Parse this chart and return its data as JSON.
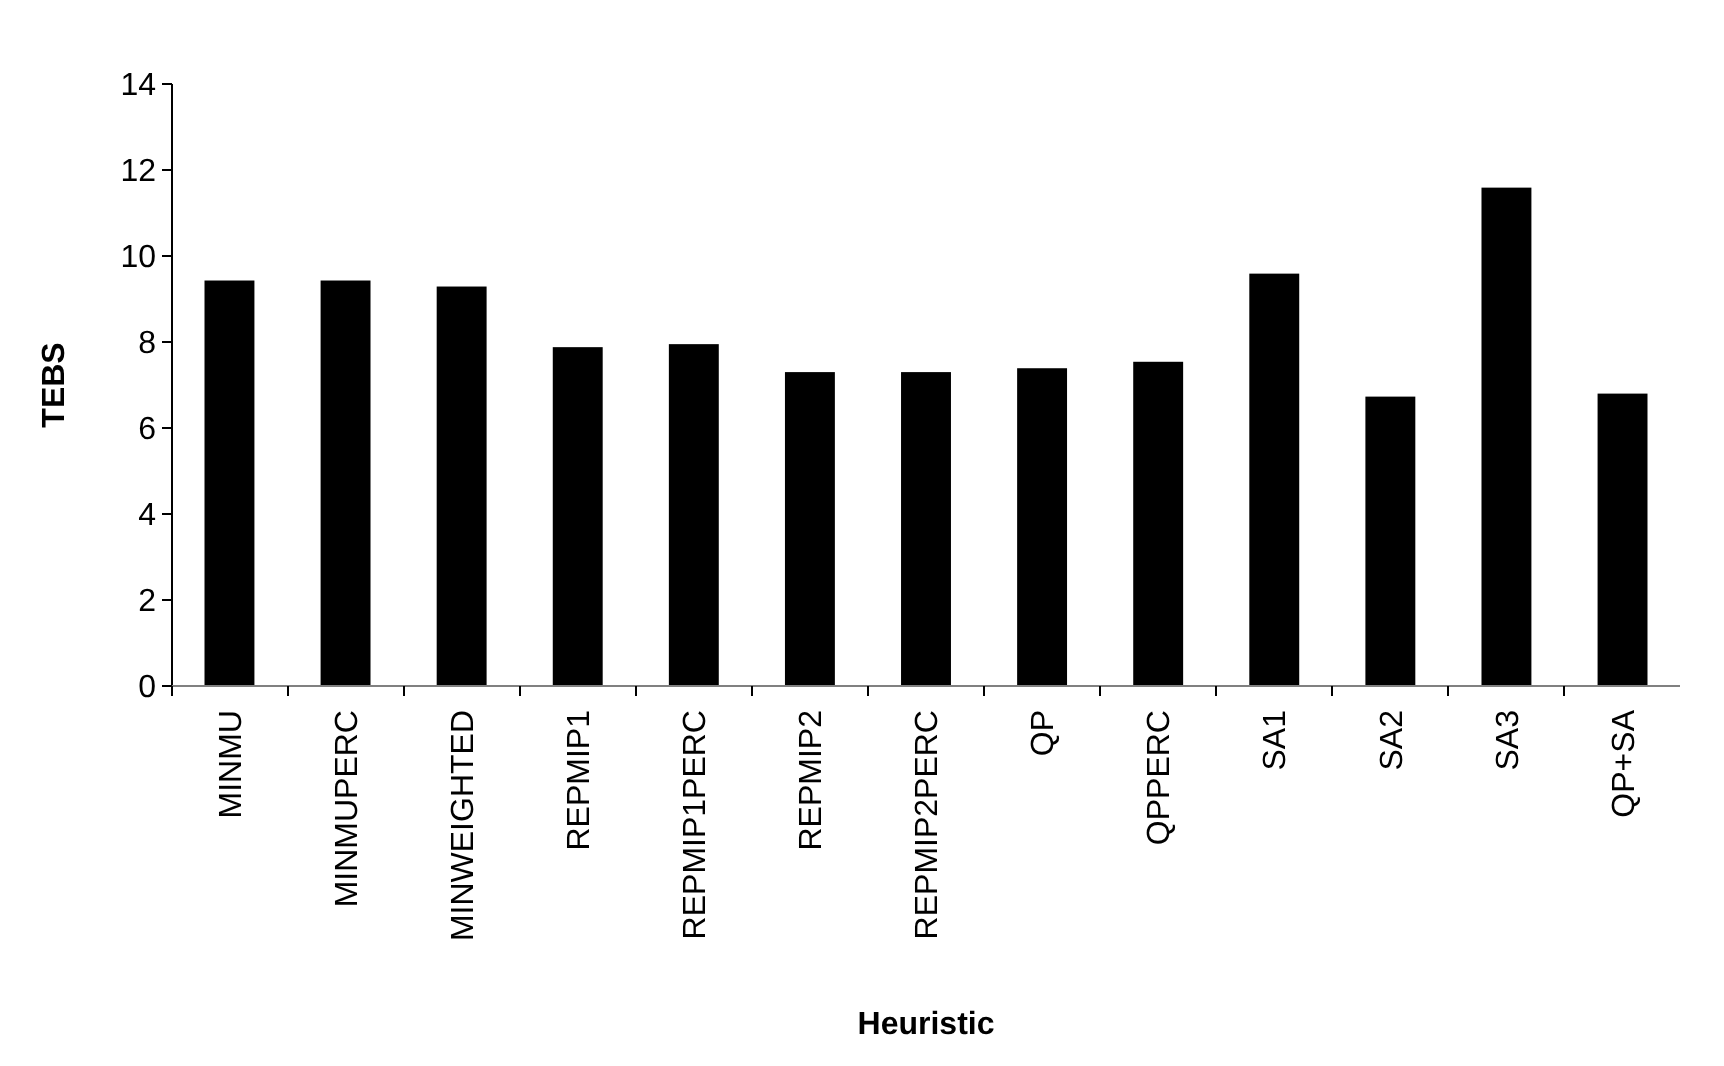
{
  "chart_data": {
    "type": "bar",
    "xlabel": "Heuristic",
    "ylabel": "TEBS",
    "categories": [
      "MINMU",
      "MINMUPERC",
      "MINWEIGHTED",
      "REPMIP1",
      "REPMIP1PERC",
      "REPMIP2",
      "REPMIP2PERC",
      "QP",
      "QPPERC",
      "SA1",
      "SA2",
      "SA3",
      "QP+SA"
    ],
    "values": [
      9.43,
      9.43,
      9.29,
      7.88,
      7.95,
      7.3,
      7.3,
      7.39,
      7.54,
      9.59,
      6.73,
      11.59,
      6.8
    ],
    "color": "#000000",
    "ylim": [
      0,
      14
    ],
    "yticks": [
      0,
      2,
      4,
      6,
      8,
      10,
      12,
      14
    ],
    "grid": false
  }
}
